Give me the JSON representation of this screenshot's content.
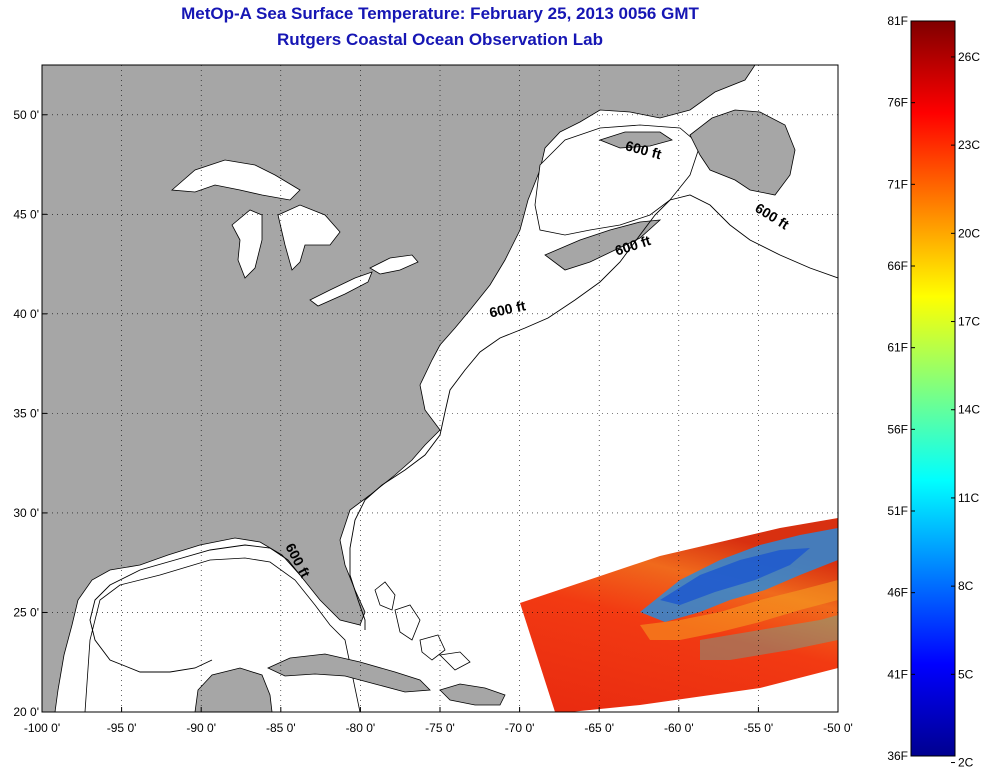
{
  "title": "MetOp-A Sea Surface Temperature:  February 25, 2013 0056 GMT",
  "subtitle": "Rutgers Coastal Ocean Observation Lab",
  "map": {
    "lon_range": [
      -100,
      -50
    ],
    "lat_range": [
      20,
      52.5
    ],
    "lon_ticks": [
      {
        "value": -100,
        "label": "-100 0'"
      },
      {
        "value": -95,
        "label": "-95 0'"
      },
      {
        "value": -90,
        "label": "-90 0'"
      },
      {
        "value": -85,
        "label": "-85 0'"
      },
      {
        "value": -80,
        "label": "-80 0'"
      },
      {
        "value": -75,
        "label": "-75 0'"
      },
      {
        "value": -70,
        "label": "-70 0'"
      },
      {
        "value": -65,
        "label": "-65 0'"
      },
      {
        "value": -60,
        "label": "-60 0'"
      },
      {
        "value": -55,
        "label": "-55 0'"
      },
      {
        "value": -50,
        "label": "-50 0'"
      }
    ],
    "lat_ticks": [
      {
        "value": 50,
        "label": "50 0'"
      },
      {
        "value": 45,
        "label": "45 0'"
      },
      {
        "value": 40,
        "label": "40 0'"
      },
      {
        "value": 35,
        "label": "35 0'"
      },
      {
        "value": 30,
        "label": "30 0'"
      },
      {
        "value": 25,
        "label": "25 0'"
      },
      {
        "value": 20,
        "label": "20 0'"
      }
    ],
    "grid": true,
    "land_color": "#a6a6a6",
    "contour_labels": [
      {
        "text": "600 ft",
        "lon": -62.3,
        "lat": 48.0,
        "rotate": 15
      },
      {
        "text": "600 ft",
        "lon": -54.3,
        "lat": 44.7,
        "rotate": 32
      },
      {
        "text": "600 ft",
        "lon": -62.8,
        "lat": 43.2,
        "rotate": -18
      },
      {
        "text": "600 ft",
        "lon": -70.7,
        "lat": 40.0,
        "rotate": -12
      },
      {
        "text": "600 ft",
        "lon": -84.2,
        "lat": 27.5,
        "rotate": 62
      }
    ]
  },
  "colorbar": {
    "left_labels": [
      "81F",
      "76F",
      "71F",
      "66F",
      "61F",
      "56F",
      "51F",
      "46F",
      "41F",
      "36F"
    ],
    "right_labels": [
      "26C",
      "23C",
      "20C",
      "17C",
      "14C",
      "11C",
      "8C",
      "5C",
      "2C"
    ],
    "top_color": "#7f0000",
    "bottom_color": "#00008f"
  }
}
